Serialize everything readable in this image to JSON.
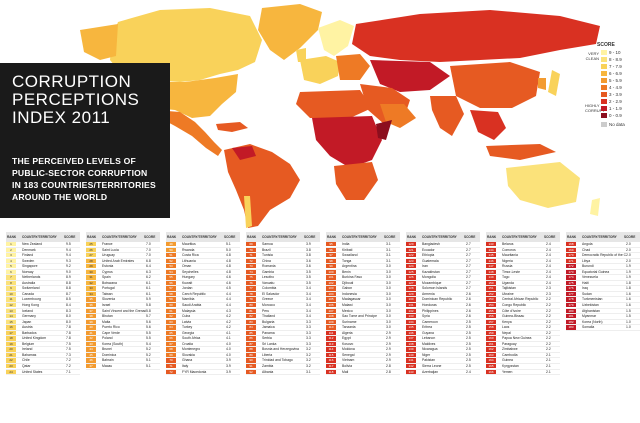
{
  "title": {
    "line1": "CORRUPTION",
    "line2": "PERCEPTIONS",
    "line3": "INDEX 2011"
  },
  "subtitle": [
    "THE PERCEIVED LEVELS OF",
    "PUBLIC-SECTOR CORRUPTION",
    "IN 183 COUNTRIES/TERRITORIES",
    "AROUND THE WORLD"
  ],
  "legend": {
    "title": "SCORE",
    "clean_label": [
      "VERY",
      "CLEAN"
    ],
    "corrupt_label": [
      "HIGHLY",
      "CORRUPT"
    ],
    "items": [
      {
        "label": "9 - 10",
        "color": "#fff3a3"
      },
      {
        "label": "8 - 8.9",
        "color": "#fbe27a"
      },
      {
        "label": "7 - 7.9",
        "color": "#f9d25a"
      },
      {
        "label": "6 - 6.9",
        "color": "#f7b63e"
      },
      {
        "label": "5 - 5.9",
        "color": "#f39b30"
      },
      {
        "label": "4 - 4.9",
        "color": "#ee7a25"
      },
      {
        "label": "3 - 3.9",
        "color": "#e65a22"
      },
      {
        "label": "2 - 2.9",
        "color": "#d93122"
      },
      {
        "label": "1 - 1.9",
        "color": "#c21a26"
      },
      {
        "label": "0 - 0.9",
        "color": "#8c0e1e"
      }
    ],
    "nodata": "No data"
  },
  "table_header": {
    "rank": "RANK",
    "country": "COUNTRY/TERRITORY",
    "score": "SCORE"
  },
  "columns": [
    {
      "start_rank": 1,
      "rows": [
        [
          "New Zealand",
          "9.5"
        ],
        [
          "Denmark",
          "9.4"
        ],
        [
          "Finland",
          "9.4"
        ],
        [
          "Sweden",
          "9.3"
        ],
        [
          "Singapore",
          "9.2"
        ],
        [
          "Norway",
          "9.0"
        ],
        [
          "Netherlands",
          "8.9"
        ],
        [
          "Australia",
          "8.8"
        ],
        [
          "Switzerland",
          "8.8"
        ],
        [
          "Canada",
          "8.7"
        ],
        [
          "Luxembourg",
          "8.5"
        ],
        [
          "Hong Kong",
          "8.4"
        ],
        [
          "Iceland",
          "8.3"
        ],
        [
          "Germany",
          "8.0"
        ],
        [
          "Japan",
          "8.0"
        ],
        [
          "Austria",
          "7.8"
        ],
        [
          "Barbados",
          "7.8"
        ],
        [
          "United Kingdom",
          "7.8"
        ],
        [
          "Belgium",
          "7.5"
        ],
        [
          "Ireland",
          "7.5"
        ],
        [
          "Bahamas",
          "7.3"
        ],
        [
          "Chile",
          "7.2"
        ],
        [
          "Qatar",
          "7.2"
        ],
        [
          "United States",
          "7.1"
        ]
      ]
    },
    {
      "start_rank": 25,
      "rows": [
        [
          "France",
          "7.0"
        ],
        [
          "Saint Lucia",
          "7.0"
        ],
        [
          "Uruguay",
          "7.0"
        ],
        [
          "United Arab Emirates",
          "6.8"
        ],
        [
          "Estonia",
          "6.4"
        ],
        [
          "Cyprus",
          "6.3"
        ],
        [
          "Spain",
          "6.2"
        ],
        [
          "Botswana",
          "6.1"
        ],
        [
          "Portugal",
          "6.1"
        ],
        [
          "Taiwan",
          "6.1"
        ],
        [
          "Slovenia",
          "5.9"
        ],
        [
          "Israel",
          "5.8"
        ],
        [
          "Saint Vincent and the Grenadines",
          "5.8"
        ],
        [
          "Bhutan",
          "5.7"
        ],
        [
          "Malta",
          "5.6"
        ],
        [
          "Puerto Rico",
          "5.6"
        ],
        [
          "Cape Verde",
          "5.5"
        ],
        [
          "Poland",
          "5.5"
        ],
        [
          "Korea (South)",
          "5.4"
        ],
        [
          "Brunei",
          "5.2"
        ],
        [
          "Dominica",
          "5.2"
        ],
        [
          "Bahrain",
          "5.1"
        ],
        [
          "Macau",
          "5.1"
        ]
      ]
    },
    {
      "start_rank": 49,
      "rows": [
        [
          "Mauritius",
          "5.1"
        ],
        [
          "Rwanda",
          "5.0"
        ],
        [
          "Costa Rica",
          "4.8"
        ],
        [
          "Lithuania",
          "4.8"
        ],
        [
          "Oman",
          "4.8"
        ],
        [
          "Seychelles",
          "4.8"
        ],
        [
          "Hungary",
          "4.6"
        ],
        [
          "Kuwait",
          "4.6"
        ],
        [
          "Jordan",
          "4.5"
        ],
        [
          "Czech Republic",
          "4.4"
        ],
        [
          "Namibia",
          "4.4"
        ],
        [
          "Saudi Arabia",
          "4.4"
        ],
        [
          "Malaysia",
          "4.3"
        ],
        [
          "Cuba",
          "4.2"
        ],
        [
          "Latvia",
          "4.2"
        ],
        [
          "Turkey",
          "4.2"
        ],
        [
          "Georgia",
          "4.1"
        ],
        [
          "South Africa",
          "4.1"
        ],
        [
          "Croatia",
          "4.0"
        ],
        [
          "Montenegro",
          "4.0"
        ],
        [
          "Slovakia",
          "4.0"
        ],
        [
          "Ghana",
          "3.9"
        ],
        [
          "Italy",
          "3.9"
        ],
        [
          "FYR Macedonia",
          "3.9"
        ]
      ]
    },
    {
      "start_rank": 69,
      "rows": [
        [
          "Samoa",
          "3.9"
        ],
        [
          "Brazil",
          "3.8"
        ],
        [
          "Tunisia",
          "3.8"
        ],
        [
          "China",
          "3.6"
        ],
        [
          "Romania",
          "3.6"
        ],
        [
          "Gambia",
          "3.5"
        ],
        [
          "Lesotho",
          "3.5"
        ],
        [
          "Vanuatu",
          "3.5"
        ],
        [
          "Colombia",
          "3.4"
        ],
        [
          "El Salvador",
          "3.4"
        ],
        [
          "Greece",
          "3.4"
        ],
        [
          "Morocco",
          "3.4"
        ],
        [
          "Peru",
          "3.4"
        ],
        [
          "Thailand",
          "3.4"
        ],
        [
          "Bulgaria",
          "3.3"
        ],
        [
          "Jamaica",
          "3.3"
        ],
        [
          "Panama",
          "3.3"
        ],
        [
          "Serbia",
          "3.3"
        ],
        [
          "Sri Lanka",
          "3.3"
        ],
        [
          "Bosnia and Herzegovina",
          "3.2"
        ],
        [
          "Liberia",
          "3.2"
        ],
        [
          "Trinidad and Tobago",
          "3.2"
        ],
        [
          "Zambia",
          "3.2"
        ],
        [
          "Albania",
          "3.1"
        ]
      ]
    },
    {
      "start_rank": 95,
      "rows": [
        [
          "India",
          "3.1"
        ],
        [
          "Kiribati",
          "3.1"
        ],
        [
          "Swaziland",
          "3.1"
        ],
        [
          "Tonga",
          "3.1"
        ],
        [
          "Argentina",
          "3.0"
        ],
        [
          "Benin",
          "3.0"
        ],
        [
          "Burkina Faso",
          "3.0"
        ],
        [
          "Djibouti",
          "3.0"
        ],
        [
          "Gabon",
          "3.0"
        ],
        [
          "Indonesia",
          "3.0"
        ],
        [
          "Madagascar",
          "3.0"
        ],
        [
          "Malawi",
          "3.0"
        ],
        [
          "Mexico",
          "3.0"
        ],
        [
          "Sao Tome and Principe",
          "3.0"
        ],
        [
          "Suriname",
          "3.0"
        ],
        [
          "Tanzania",
          "3.0"
        ],
        [
          "Algeria",
          "2.9"
        ],
        [
          "Egypt",
          "2.9"
        ],
        [
          "Kosovo",
          "2.9"
        ],
        [
          "Moldova",
          "2.9"
        ],
        [
          "Senegal",
          "2.9"
        ],
        [
          "Vietnam",
          "2.9"
        ],
        [
          "Bolivia",
          "2.8"
        ],
        [
          "Mali",
          "2.8"
        ]
      ]
    },
    {
      "start_rank": 120,
      "rows": [
        [
          "Bangladesh",
          "2.7"
        ],
        [
          "Ecuador",
          "2.7"
        ],
        [
          "Ethiopia",
          "2.7"
        ],
        [
          "Guatemala",
          "2.7"
        ],
        [
          "Iran",
          "2.7"
        ],
        [
          "Kazakhstan",
          "2.7"
        ],
        [
          "Mongolia",
          "2.7"
        ],
        [
          "Mozambique",
          "2.7"
        ],
        [
          "Solomon Islands",
          "2.7"
        ],
        [
          "Armenia",
          "2.6"
        ],
        [
          "Dominican Republic",
          "2.6"
        ],
        [
          "Honduras",
          "2.6"
        ],
        [
          "Philippines",
          "2.6"
        ],
        [
          "Syria",
          "2.6"
        ],
        [
          "Cameroon",
          "2.5"
        ],
        [
          "Eritrea",
          "2.5"
        ],
        [
          "Guyana",
          "2.5"
        ],
        [
          "Lebanon",
          "2.5"
        ],
        [
          "Maldives",
          "2.5"
        ],
        [
          "Nicaragua",
          "2.5"
        ],
        [
          "Niger",
          "2.5"
        ],
        [
          "Pakistan",
          "2.5"
        ],
        [
          "Sierra Leone",
          "2.5"
        ],
        [
          "Azerbaijan",
          "2.4"
        ]
      ]
    },
    {
      "start_rank": 143,
      "rows": [
        [
          "Belarus",
          "2.4"
        ],
        [
          "Comoros",
          "2.4"
        ],
        [
          "Mauritania",
          "2.4"
        ],
        [
          "Nigeria",
          "2.4"
        ],
        [
          "Russia",
          "2.4"
        ],
        [
          "Timor-Leste",
          "2.4"
        ],
        [
          "Togo",
          "2.4"
        ],
        [
          "Uganda",
          "2.4"
        ],
        [
          "Tajikistan",
          "2.3"
        ],
        [
          "Ukraine",
          "2.3"
        ],
        [
          "Central African Republic",
          "2.2"
        ],
        [
          "Congo Republic",
          "2.2"
        ],
        [
          "Côte d'Ivoire",
          "2.2"
        ],
        [
          "Guinea-Bissau",
          "2.2"
        ],
        [
          "Kenya",
          "2.2"
        ],
        [
          "Laos",
          "2.2"
        ],
        [
          "Nepal",
          "2.2"
        ],
        [
          "Papua New Guinea",
          "2.2"
        ],
        [
          "Paraguay",
          "2.2"
        ],
        [
          "Zimbabwe",
          "2.2"
        ],
        [
          "Cambodia",
          "2.1"
        ],
        [
          "Guinea",
          "2.1"
        ],
        [
          "Kyrgyzstan",
          "2.1"
        ],
        [
          "Yemen",
          "2.1"
        ]
      ]
    },
    {
      "start_rank": 168,
      "rows": [
        [
          "Angola",
          "2.0"
        ],
        [
          "Chad",
          "2.0"
        ],
        [
          "Democratic Republic of the Congo",
          "2.0"
        ],
        [
          "Libya",
          "2.0"
        ],
        [
          "Burundi",
          "1.9"
        ],
        [
          "Equatorial Guinea",
          "1.9"
        ],
        [
          "Venezuela",
          "1.9"
        ],
        [
          "Haiti",
          "1.8"
        ],
        [
          "Iraq",
          "1.8"
        ],
        [
          "Sudan",
          "1.6"
        ],
        [
          "Turkmenistan",
          "1.6"
        ],
        [
          "Uzbekistan",
          "1.6"
        ],
        [
          "Afghanistan",
          "1.5"
        ],
        [
          "Myanmar",
          "1.5"
        ],
        [
          "Korea (North)",
          "1.0"
        ],
        [
          "Somalia",
          "1.0"
        ]
      ]
    }
  ]
}
